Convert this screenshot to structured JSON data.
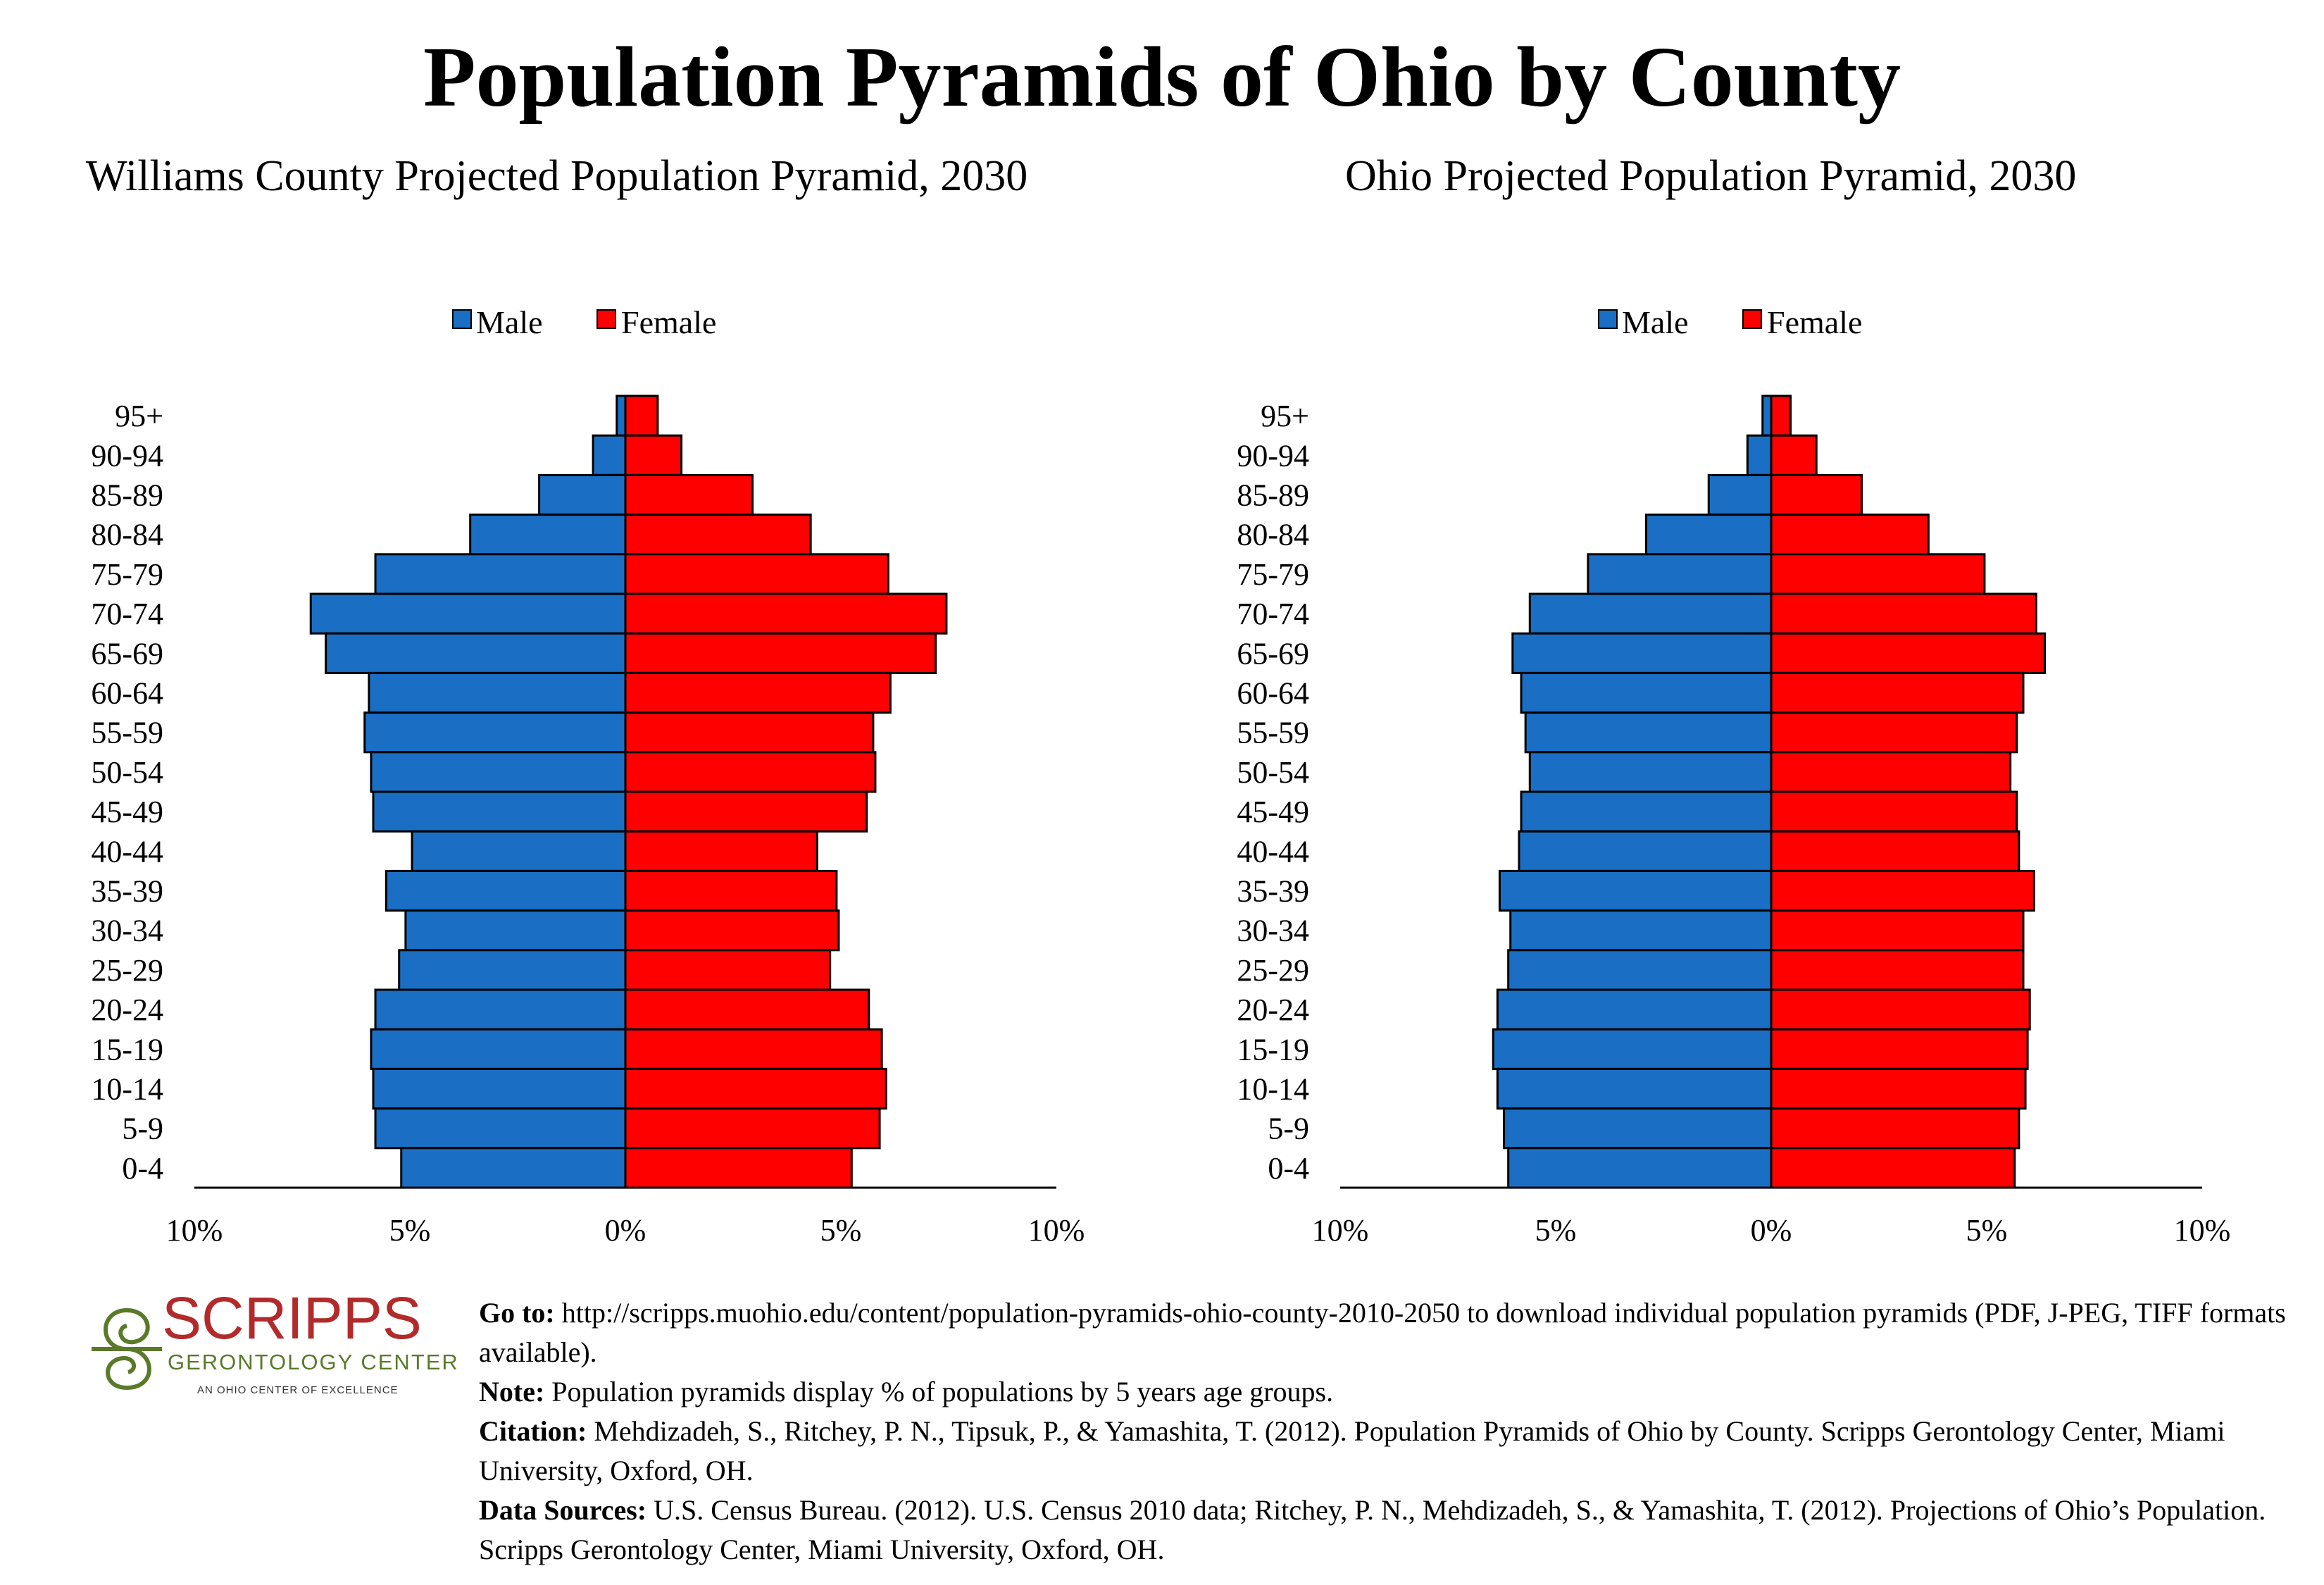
{
  "title": "Population Pyramids of Ohio by County",
  "legend": {
    "male": "Male",
    "female": "Female"
  },
  "colors": {
    "male": "#1a6fc4",
    "female": "#ff0000"
  },
  "chart_data": [
    {
      "type": "bar",
      "orientation": "horizontal-pyramid",
      "title": "Williams County Projected Population Pyramid, 2030",
      "categories": [
        "95+",
        "90-94",
        "85-89",
        "80-84",
        "75-79",
        "70-74",
        "65-69",
        "60-64",
        "55-59",
        "50-54",
        "45-49",
        "40-44",
        "35-39",
        "30-34",
        "25-29",
        "20-24",
        "15-19",
        "10-14",
        "5-9",
        "0-4"
      ],
      "series": [
        {
          "name": "Male",
          "values": [
            0.2,
            0.75,
            2.0,
            3.6,
            5.8,
            7.3,
            6.95,
            5.95,
            6.05,
            5.9,
            5.85,
            4.95,
            5.55,
            5.1,
            5.25,
            5.8,
            5.9,
            5.85,
            5.8,
            5.2
          ]
        },
        {
          "name": "Female",
          "values": [
            0.75,
            1.3,
            2.95,
            4.3,
            6.1,
            7.45,
            7.2,
            6.15,
            5.75,
            5.8,
            5.6,
            4.45,
            4.9,
            4.95,
            4.75,
            5.65,
            5.95,
            6.05,
            5.9,
            5.25
          ]
        }
      ],
      "xlim": [
        -10,
        10
      ],
      "xticks": [
        "10%",
        "5%",
        "0%",
        "5%",
        "10%"
      ],
      "legend_position": "top-center"
    },
    {
      "type": "bar",
      "orientation": "horizontal-pyramid",
      "title": "Ohio Projected Population Pyramid, 2030",
      "categories": [
        "95+",
        "90-94",
        "85-89",
        "80-84",
        "75-79",
        "70-74",
        "65-69",
        "60-64",
        "55-59",
        "50-54",
        "45-49",
        "40-44",
        "35-39",
        "30-34",
        "25-29",
        "20-24",
        "15-19",
        "10-14",
        "5-9",
        "0-4"
      ],
      "series": [
        {
          "name": "Male",
          "values": [
            0.2,
            0.55,
            1.45,
            2.9,
            4.25,
            5.6,
            6.0,
            5.8,
            5.7,
            5.6,
            5.8,
            5.85,
            6.3,
            6.05,
            6.1,
            6.35,
            6.45,
            6.35,
            6.2,
            6.1
          ]
        },
        {
          "name": "Female",
          "values": [
            0.45,
            1.05,
            2.1,
            3.65,
            4.95,
            6.15,
            6.35,
            5.85,
            5.7,
            5.55,
            5.7,
            5.75,
            6.1,
            5.85,
            5.85,
            6.0,
            5.95,
            5.9,
            5.75,
            5.65
          ]
        }
      ],
      "xlim": [
        -10,
        10
      ],
      "xticks": [
        "10%",
        "5%",
        "0%",
        "5%",
        "10%"
      ],
      "legend_position": "top-center"
    }
  ],
  "logo": {
    "name": "SCRIPPS",
    "subtitle": "GERONTOLOGY CENTER",
    "tagline": "AN OHIO CENTER OF EXCELLENCE"
  },
  "footer": {
    "goto_label": "Go to:",
    "goto_text": "http://scripps.muohio.edu/content/population-pyramids-ohio-county-2010-2050 to download individual population pyramids (PDF, J-PEG, TIFF formats available).",
    "note_label": "Note:",
    "note_text": "Population pyramids display % of populations by 5 years age groups.",
    "citation_label": "Citation:",
    "citation_text": "Mehdizadeh, S., Ritchey, P. N., Tipsuk, P., & Yamashita, T. (2012). Population Pyramids of Ohio by County. Scripps Gerontology Center, Miami University, Oxford, OH.",
    "sources_label": "Data Sources:",
    "sources_text": "U.S. Census Bureau. (2012). U.S. Census 2010 data; Ritchey, P. N., Mehdizadeh, S., & Yamashita, T. (2012). Projections of Ohio’s Population. Scripps Gerontology Center, Miami University, Oxford, OH."
  }
}
